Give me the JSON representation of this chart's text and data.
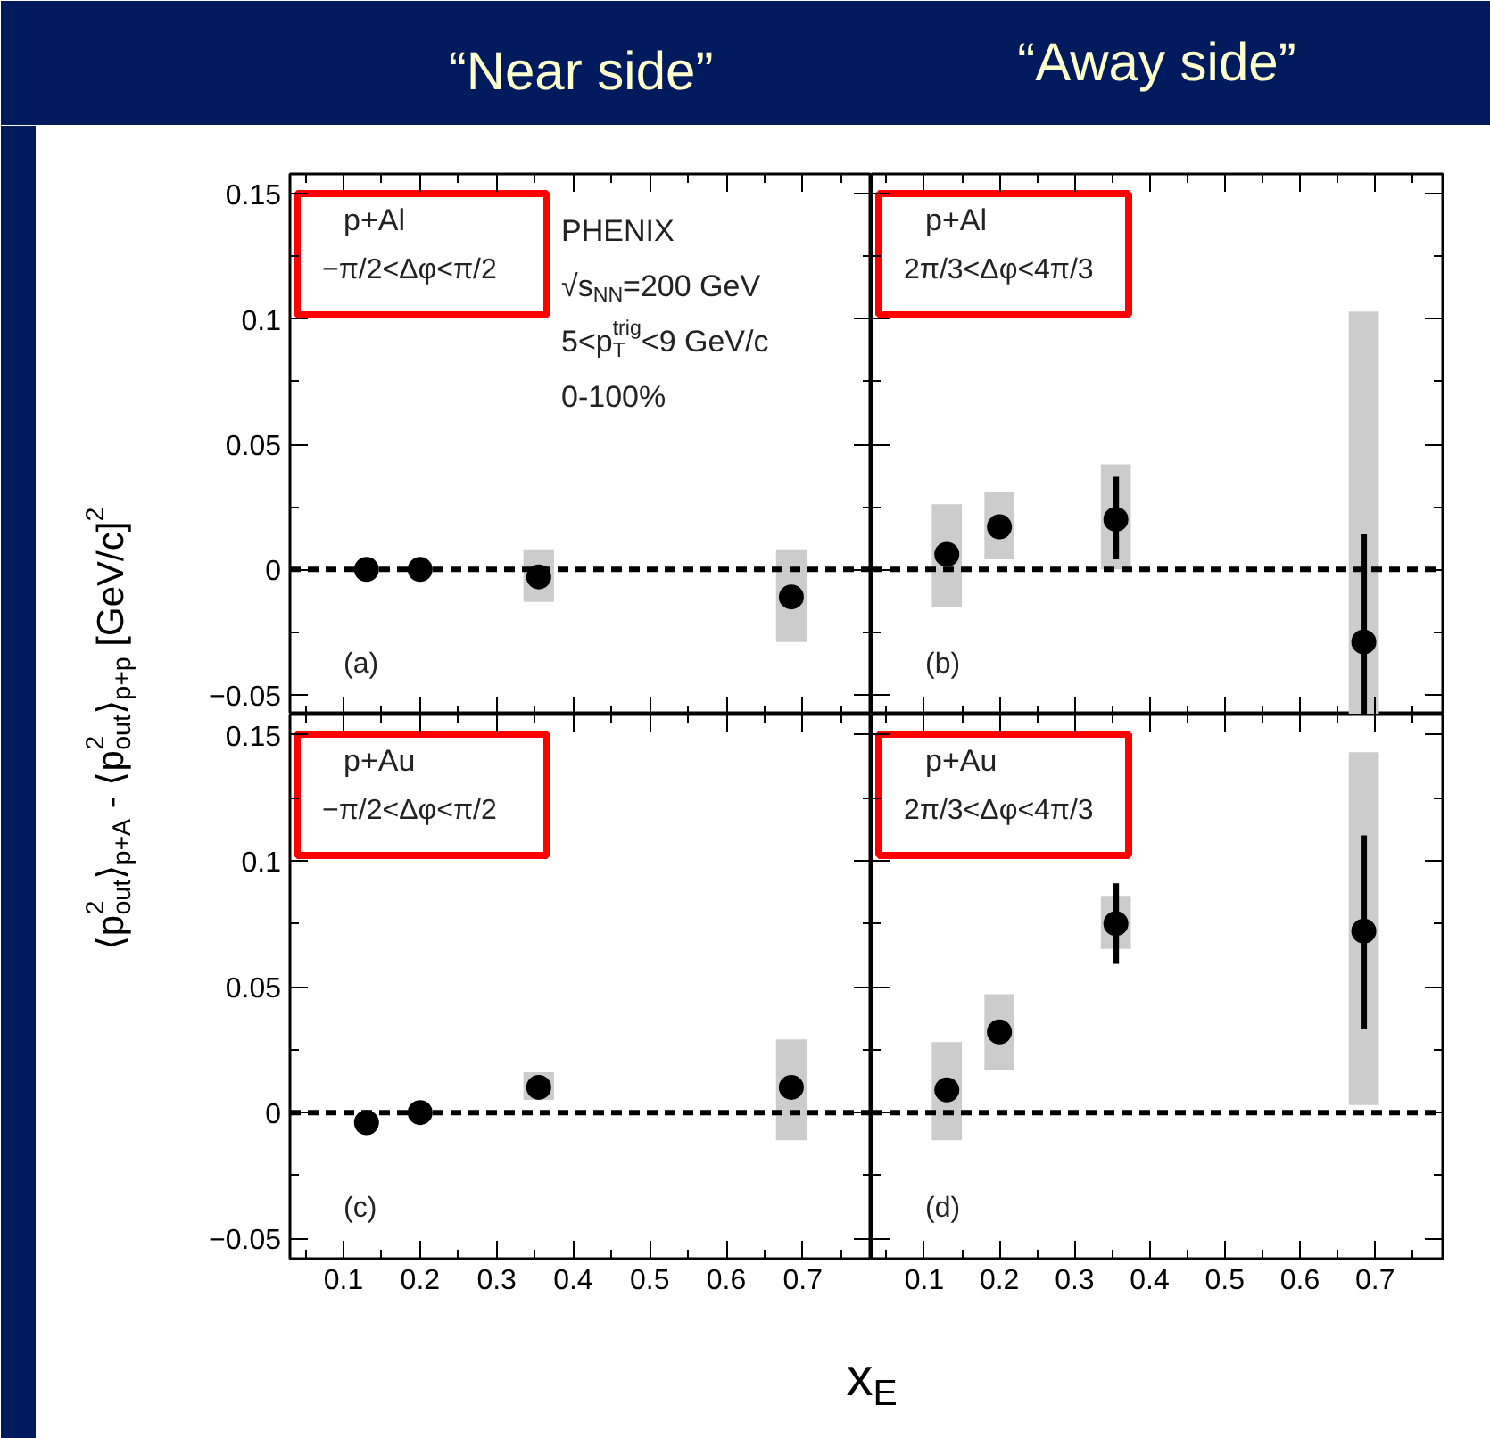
{
  "chart_data": [
    {
      "type": "scatter",
      "title": "“Near side”",
      "ylabel": "⟨p$_{out}$$^{2}$⟩$_{p+A}$ - ⟨p$_{out}$$^{2}$⟩$_{p+p}$ [GeV/c]$^{2}$",
      "xlim": [
        0.03,
        0.79
      ],
      "ylim": [
        -0.058,
        0.158
      ],
      "xticks": [
        0.1,
        0.2,
        0.3,
        0.4,
        0.5,
        0.6,
        0.7,
        {
          "value": 0.05,
          "label": null
        },
        {
          "value": 0.15,
          "label": null
        },
        {
          "value": 0.25,
          "label": null
        },
        {
          "value": 0.35,
          "label": null
        },
        {
          "value": 0.45,
          "label": null
        },
        {
          "value": 0.55,
          "label": null
        },
        {
          "value": 0.65,
          "label": null
        },
        {
          "value": 0.75,
          "label": null
        }
      ],
      "yticks": [
        {
          "value": -0.05,
          "label": "−0.05"
        },
        0,
        0.05,
        0.1,
        0.15,
        {
          "value": -0.025,
          "label": null
        },
        {
          "value": 0.025,
          "label": null
        },
        {
          "value": 0.075,
          "label": null
        },
        {
          "value": 0.125,
          "label": null
        }
      ],
      "tick_labels": "y",
      "marker": "circle",
      "ref_lines": [
        {
          "axis": "y",
          "value": 0,
          "line_style": "dashed",
          "color": "#000000"
        }
      ],
      "annotations": [
        "p+Al",
        "−π/2<Δφ<π/2",
        "PHENIX",
        "√s$_{NN}$=200 GeV",
        "5<p$^{trig}$$_{T}$<9 GeV/c",
        "0-100%",
        "(a)"
      ],
      "series": [
        {
          "type": "bar",
          "color": "#cccccc",
          "x": [
            0.355,
            0.685
          ],
          "base": [
            -0.013,
            -0.029
          ],
          "values": [
            0.021,
            0.037
          ]
        },
        {
          "color": "#000000",
          "x": [
            0.13,
            0.2,
            0.355,
            0.685
          ],
          "values": [
            0,
            0,
            -0.003,
            -0.011
          ],
          "errors": [
            null,
            null,
            null,
            null
          ]
        }
      ]
    },
    {
      "type": "scatter",
      "title": "“Away side”",
      "xlim": [
        0.03,
        0.79
      ],
      "ylim": [
        -0.058,
        0.158
      ],
      "xticks": [
        0.1,
        0.2,
        0.3,
        0.4,
        0.5,
        0.6,
        0.7,
        {
          "value": 0.05,
          "label": null
        },
        {
          "value": 0.15,
          "label": null
        },
        {
          "value": 0.25,
          "label": null
        },
        {
          "value": 0.35,
          "label": null
        },
        {
          "value": 0.45,
          "label": null
        },
        {
          "value": 0.55,
          "label": null
        },
        {
          "value": 0.65,
          "label": null
        },
        {
          "value": 0.75,
          "label": null
        }
      ],
      "yticks": [
        -0.05,
        0,
        0.05,
        0.1,
        0.15,
        {
          "value": -0.025,
          "label": null
        },
        {
          "value": 0.025,
          "label": null
        },
        {
          "value": 0.075,
          "label": null
        },
        {
          "value": 0.125,
          "label": null
        }
      ],
      "tick_labels": false,
      "marker": "circle",
      "ref_lines": [
        {
          "axis": "y",
          "value": 0,
          "line_style": "dashed",
          "color": "#000000"
        }
      ],
      "annotations": [
        "p+Al",
        "2π/3<Δφ<4π/3",
        "(b)"
      ],
      "series": [
        {
          "type": "bar",
          "color": "#cccccc",
          "x": [
            0.13,
            0.2,
            0.355,
            0.685
          ],
          "base": [
            -0.015,
            0.004,
            0.0,
            -0.058
          ],
          "values": [
            0.041,
            0.027,
            0.042,
            0.161
          ]
        },
        {
          "color": "#000000",
          "x": [
            0.13,
            0.2,
            0.355,
            0.685
          ],
          "values": [
            0.006,
            0.017,
            0.02,
            -0.029
          ],
          "errors": [
            null,
            null,
            [
              0.004,
              0.037
            ],
            [
              -0.058,
              0.014
            ]
          ]
        }
      ]
    },
    {
      "type": "scatter",
      "xlabel": "x$_{E}$",
      "xlim": [
        0.03,
        0.79
      ],
      "ylim": [
        -0.058,
        0.158
      ],
      "xticks": [
        0.1,
        0.2,
        0.3,
        0.4,
        0.5,
        0.6,
        0.7,
        {
          "value": 0.05,
          "label": null
        },
        {
          "value": 0.15,
          "label": null
        },
        {
          "value": 0.25,
          "label": null
        },
        {
          "value": 0.35,
          "label": null
        },
        {
          "value": 0.45,
          "label": null
        },
        {
          "value": 0.55,
          "label": null
        },
        {
          "value": 0.65,
          "label": null
        },
        {
          "value": 0.75,
          "label": null
        }
      ],
      "yticks": [
        {
          "value": -0.05,
          "label": "−0.05"
        },
        0,
        0.05,
        0.1,
        0.15,
        {
          "value": -0.025,
          "label": null
        },
        {
          "value": 0.025,
          "label": null
        },
        {
          "value": 0.075,
          "label": null
        },
        {
          "value": 0.125,
          "label": null
        }
      ],
      "marker": "circle",
      "ref_lines": [
        {
          "axis": "y",
          "value": 0,
          "line_style": "dashed",
          "color": "#000000"
        }
      ],
      "annotations": [
        "p+Au",
        "−π/2<Δφ<π/2",
        "(c)"
      ],
      "series": [
        {
          "type": "bar",
          "color": "#cccccc",
          "x": [
            0.355,
            0.685
          ],
          "base": [
            0.005,
            -0.011
          ],
          "values": [
            0.011,
            0.04
          ]
        },
        {
          "color": "#000000",
          "x": [
            0.13,
            0.2,
            0.355,
            0.685
          ],
          "values": [
            -0.004,
            0,
            0.01,
            0.01
          ],
          "errors": [
            null,
            null,
            null,
            null
          ]
        }
      ]
    },
    {
      "type": "scatter",
      "xlim": [
        0.03,
        0.79
      ],
      "ylim": [
        -0.058,
        0.158
      ],
      "xticks": [
        0.1,
        0.2,
        0.3,
        0.4,
        0.5,
        0.6,
        0.7,
        {
          "value": 0.05,
          "label": null
        },
        {
          "value": 0.15,
          "label": null
        },
        {
          "value": 0.25,
          "label": null
        },
        {
          "value": 0.35,
          "label": null
        },
        {
          "value": 0.45,
          "label": null
        },
        {
          "value": 0.55,
          "label": null
        },
        {
          "value": 0.65,
          "label": null
        },
        {
          "value": 0.75,
          "label": null
        }
      ],
      "yticks": [
        -0.05,
        0,
        0.05,
        0.1,
        0.15,
        {
          "value": -0.025,
          "label": null
        },
        {
          "value": 0.025,
          "label": null
        },
        {
          "value": 0.075,
          "label": null
        },
        {
          "value": 0.125,
          "label": null
        }
      ],
      "tick_labels": "x",
      "marker": "circle",
      "ref_lines": [
        {
          "axis": "y",
          "value": 0,
          "line_style": "dashed",
          "color": "#000000"
        }
      ],
      "annotations": [
        "p+Au",
        "2π/3<Δφ<4π/3",
        "(d)"
      ],
      "series": [
        {
          "type": "bar",
          "color": "#cccccc",
          "x": [
            0.13,
            0.2,
            0.355,
            0.685
          ],
          "base": [
            -0.011,
            0.017,
            0.065,
            0.003
          ],
          "values": [
            0.039,
            0.03,
            0.021,
            0.14
          ]
        },
        {
          "color": "#000000",
          "x": [
            0.13,
            0.2,
            0.355,
            0.685
          ],
          "values": [
            0.009,
            0.032,
            0.075,
            0.072
          ],
          "errors": [
            null,
            null,
            [
              0.059,
              0.091
            ],
            [
              0.033,
              0.11
            ]
          ]
        }
      ]
    }
  ]
}
